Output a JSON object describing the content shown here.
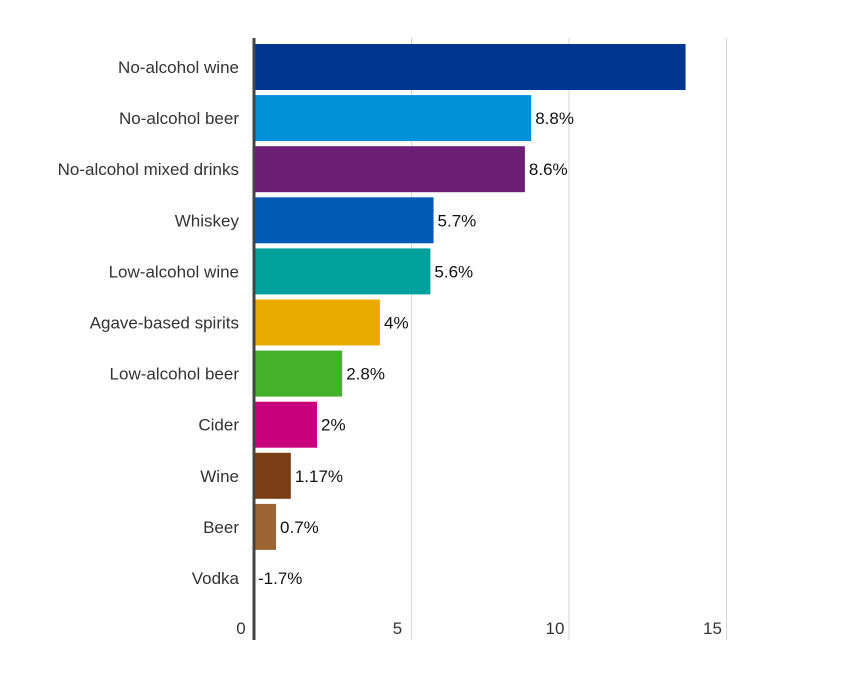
{
  "chart_data": {
    "type": "bar",
    "orientation": "horizontal",
    "categories": [
      "No-alcohol wine",
      "No-alcohol beer",
      "No-alcohol mixed drinks",
      "Whiskey",
      "Low-alcohol wine",
      "Agave-based spirits",
      "Low-alcohol beer",
      "Cider",
      "Wine",
      "Beer",
      "Vodka"
    ],
    "values": [
      13.7,
      8.8,
      8.6,
      5.7,
      5.6,
      4,
      2.8,
      2,
      1.17,
      0.7,
      -1.7
    ],
    "value_labels": [
      "",
      "8.8%",
      "8.6%",
      "5.7%",
      "5.6%",
      "4%",
      "2.8%",
      "2%",
      "1.17%",
      "0.7%",
      "-1.7%"
    ],
    "colors": [
      "#003591",
      "#0090d8",
      "#6c1f74",
      "#005bb5",
      "#00a19c",
      "#eaab00",
      "#44b02c",
      "#c8007b",
      "#7a3e17",
      "#9b6433",
      "#cccccc"
    ],
    "x_ticks": [
      0,
      5,
      10,
      15
    ],
    "x_tick_labels": [
      "0",
      "5",
      "10",
      "15"
    ],
    "xlim": [
      0,
      15
    ],
    "grid": true,
    "title": "",
    "xlabel": "",
    "ylabel": ""
  }
}
